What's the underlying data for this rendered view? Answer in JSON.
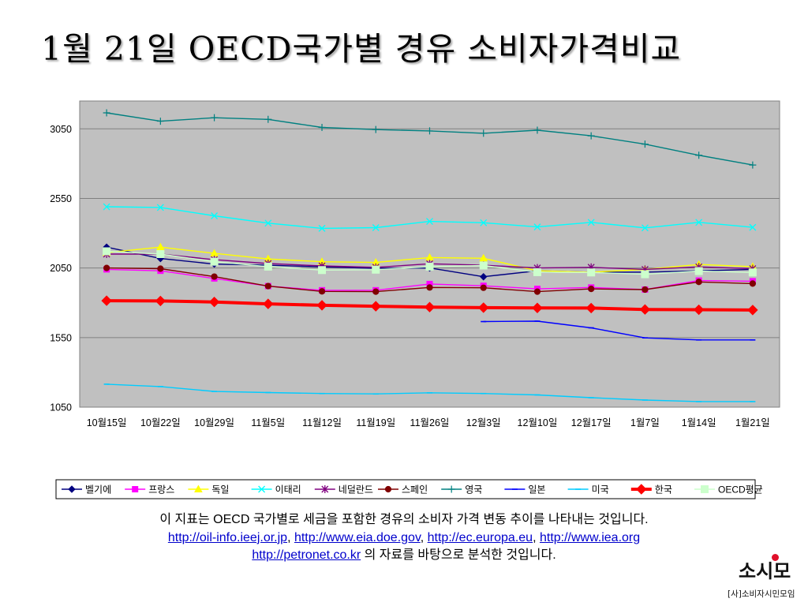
{
  "slide": {
    "title": "1월 21일 OECD국가별 경유 소비자가격비교",
    "desc_line1": "이 지표는 OECD 국가별로 세금을 포함한 경유의 소비자 가격 변동 추이를 나타내는 것입니다.",
    "links": [
      "http://oil-info.ieej.or.jp",
      "http://www.eia.doe.gov",
      "http://ec.europa.eu",
      "http://www.iea.org",
      "http://petronet.co.kr"
    ],
    "sep": ", ",
    "desc_line3_suffix": " 의 자료를 바탕으로 분석한 것입니다."
  },
  "logo": {
    "main": "소시모",
    "sub": "[사]소비자시민모임"
  },
  "chart_data": {
    "type": "line",
    "title": "",
    "xlabel": "",
    "ylabel": "",
    "categories": [
      "10월15일",
      "10월22일",
      "10월29일",
      "11월5일",
      "11월12일",
      "11월19일",
      "11월26일",
      "12월3일",
      "12월10일",
      "12월17일",
      "1월7일",
      "1월14일",
      "1월21일"
    ],
    "ylim": [
      1050,
      3250
    ],
    "yticks": [
      1050,
      1550,
      2050,
      2550,
      3050
    ],
    "grid": true,
    "legend_position": "bottom",
    "series": [
      {
        "name": "벨기에",
        "color": "#000080",
        "marker": "diamond",
        "values": [
          2200,
          2118,
          2078,
          2070,
          2058,
          2048,
          2050,
          1987,
          2030,
          2020,
          2020,
          2030,
          2040
        ]
      },
      {
        "name": "프랑스",
        "color": "#ff00ff",
        "marker": "square",
        "values": [
          2040,
          2030,
          1975,
          1920,
          1890,
          1890,
          1935,
          1922,
          1900,
          1910,
          1895,
          1960,
          1955
        ]
      },
      {
        "name": "독일",
        "color": "#ffff00",
        "marker": "triangle",
        "values": [
          2160,
          2200,
          2155,
          2115,
          2095,
          2090,
          2125,
          2120,
          2030,
          2020,
          2040,
          2075,
          2060
        ]
      },
      {
        "name": "이태리",
        "color": "#00ffff",
        "marker": "x",
        "values": [
          2490,
          2485,
          2425,
          2372,
          2335,
          2340,
          2385,
          2375,
          2345,
          2378,
          2338,
          2378,
          2342
        ]
      },
      {
        "name": "네덜란드",
        "color": "#800080",
        "marker": "asterisk",
        "values": [
          2150,
          2150,
          2110,
          2082,
          2065,
          2055,
          2080,
          2070,
          2050,
          2055,
          2040,
          2058,
          2045
        ]
      },
      {
        "name": "스페인",
        "color": "#800000",
        "marker": "circle",
        "values": [
          2050,
          2045,
          1988,
          1920,
          1882,
          1880,
          1910,
          1908,
          1880,
          1900,
          1895,
          1950,
          1938
        ]
      },
      {
        "name": "영국",
        "color": "#008080",
        "marker": "plus",
        "values": [
          3165,
          3105,
          3130,
          3118,
          3060,
          3045,
          3035,
          3018,
          3040,
          3000,
          2940,
          2860,
          2790
        ]
      },
      {
        "name": "일본",
        "color": "#0000ff",
        "marker": "dash",
        "values": [
          null,
          null,
          null,
          null,
          null,
          null,
          null,
          1665,
          1668,
          1620,
          1548,
          1533,
          1533
        ]
      },
      {
        "name": "미국",
        "color": "#00ccff",
        "marker": "dash",
        "values": [
          1215,
          1198,
          1163,
          1155,
          1148,
          1145,
          1153,
          1148,
          1138,
          1118,
          1101,
          1090,
          1090
        ]
      },
      {
        "name": "한국",
        "color": "#ff0000",
        "marker": "diamond-large",
        "values": [
          1815,
          1813,
          1806,
          1792,
          1782,
          1775,
          1769,
          1765,
          1763,
          1762,
          1752,
          1750,
          1748
        ]
      },
      {
        "name": "OECD평균",
        "color": "#ccffcc",
        "marker": "square-large",
        "values": [
          2170,
          2150,
          2095,
          2060,
          2035,
          2038,
          2060,
          2068,
          2020,
          2018,
          2005,
          2028,
          2018
        ]
      }
    ]
  }
}
